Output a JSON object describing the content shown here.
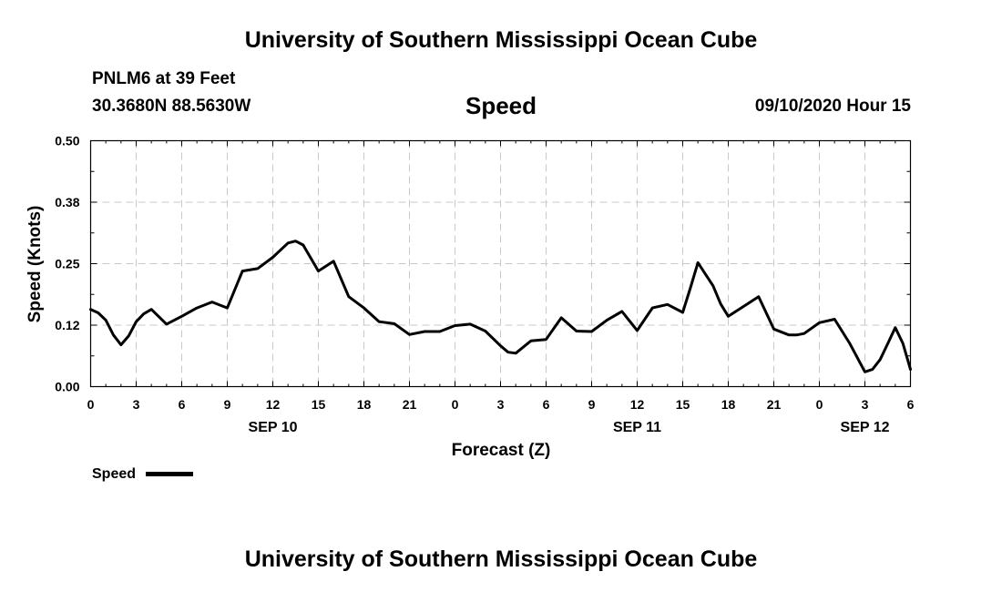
{
  "header": {
    "title": "University of Southern Mississippi Ocean Cube",
    "station": "PNLM6 at 39 Feet",
    "coordinates": "30.3680N 88.5630W",
    "timestamp": "09/10/2020 Hour 15"
  },
  "footer": {
    "title": "University of Southern Mississippi Ocean Cube"
  },
  "chart_data": {
    "type": "line",
    "title": "Speed",
    "xlabel": "Forecast (Z)",
    "ylabel": "Speed (Knots)",
    "ylim": [
      0,
      0.5
    ],
    "xlim": [
      0,
      54
    ],
    "grid": true,
    "yticks": [
      0,
      0.125,
      0.25,
      0.375,
      0.5
    ],
    "ytick_labels": [
      "0.00",
      "0.12",
      "0.25",
      "0.38",
      "0.50"
    ],
    "xticks": [
      0,
      3,
      6,
      9,
      12,
      15,
      18,
      21,
      24,
      27,
      30,
      33,
      36,
      39,
      42,
      45,
      48,
      51,
      54
    ],
    "xtick_labels": [
      "0",
      "3",
      "6",
      "9",
      "12",
      "15",
      "18",
      "21",
      "0",
      "3",
      "6",
      "9",
      "12",
      "15",
      "18",
      "21",
      "0",
      "3",
      "6"
    ],
    "date_labels": [
      {
        "x": 12,
        "label": "SEP 10"
      },
      {
        "x": 36,
        "label": "SEP 11"
      },
      {
        "x": 51,
        "label": "SEP 12"
      }
    ],
    "legend": {
      "label": "Speed",
      "placement": "bottom-left"
    },
    "series": [
      {
        "name": "Speed",
        "x": [
          0,
          0.5,
          1,
          1.5,
          2,
          2.5,
          3,
          3.5,
          4,
          5,
          6,
          7,
          8,
          9,
          10,
          11,
          12,
          13,
          13.5,
          14,
          15,
          16,
          17,
          18,
          19,
          20,
          21,
          22,
          23,
          24,
          25,
          26,
          27,
          27.5,
          28,
          29,
          30,
          31,
          32,
          33,
          34,
          35,
          36,
          37,
          38,
          39,
          39.5,
          40,
          41,
          41.5,
          42,
          43,
          44,
          45,
          46,
          46.5,
          47,
          48,
          49,
          50,
          51,
          51.5,
          52,
          52.5,
          53,
          53.5,
          54
        ],
        "values": [
          0.157,
          0.15,
          0.135,
          0.105,
          0.085,
          0.103,
          0.132,
          0.148,
          0.157,
          0.127,
          0.143,
          0.16,
          0.172,
          0.16,
          0.235,
          0.24,
          0.263,
          0.292,
          0.296,
          0.288,
          0.235,
          0.255,
          0.183,
          0.16,
          0.132,
          0.128,
          0.106,
          0.112,
          0.112,
          0.124,
          0.127,
          0.113,
          0.083,
          0.07,
          0.068,
          0.093,
          0.096,
          0.14,
          0.113,
          0.112,
          0.135,
          0.153,
          0.114,
          0.16,
          0.167,
          0.151,
          0.2,
          0.252,
          0.205,
          0.168,
          0.143,
          0.163,
          0.183,
          0.117,
          0.105,
          0.105,
          0.108,
          0.13,
          0.137,
          0.088,
          0.03,
          0.035,
          0.055,
          0.087,
          0.12,
          0.088,
          0.035
        ]
      }
    ]
  }
}
